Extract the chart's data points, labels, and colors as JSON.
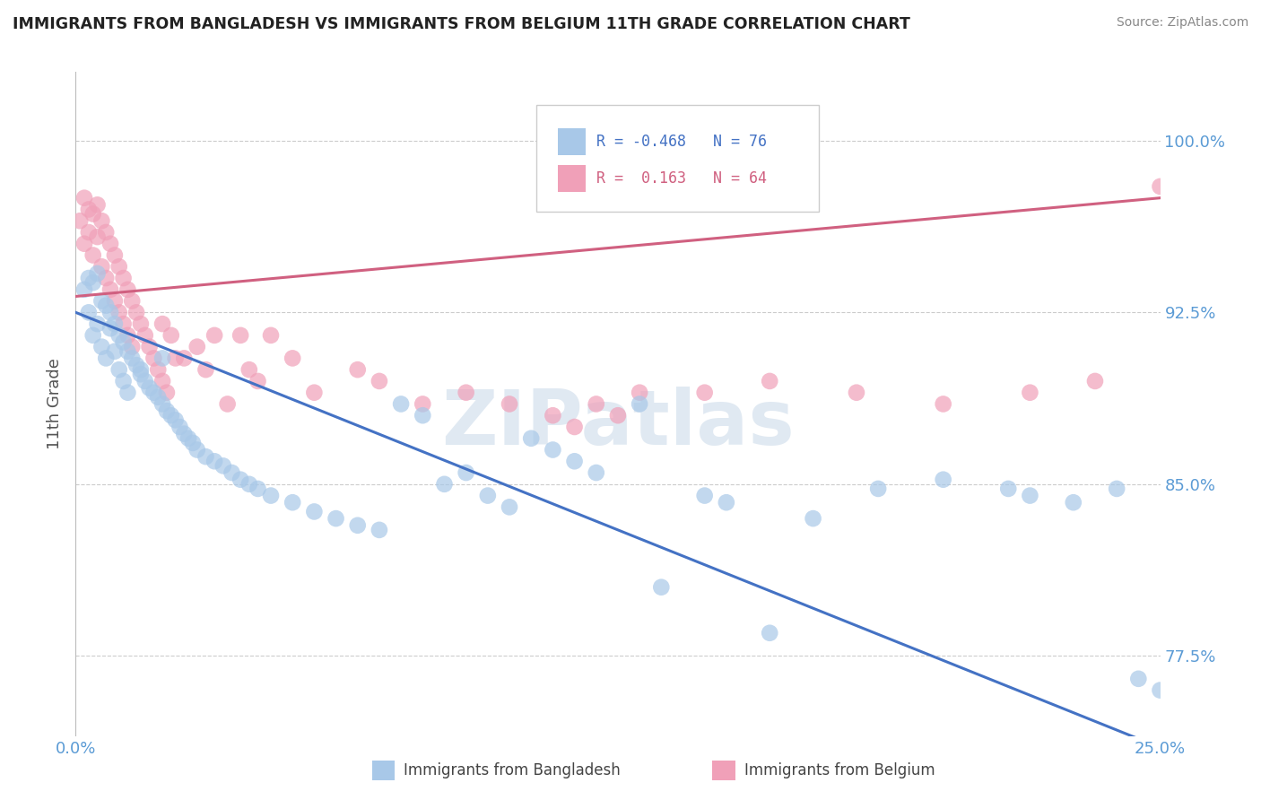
{
  "title": "IMMIGRANTS FROM BANGLADESH VS IMMIGRANTS FROM BELGIUM 11TH GRADE CORRELATION CHART",
  "source": "Source: ZipAtlas.com",
  "ylabel": "11th Grade",
  "xlim": [
    0.0,
    25.0
  ],
  "ylim": [
    74.0,
    103.0
  ],
  "yticks": [
    77.5,
    85.0,
    92.5,
    100.0
  ],
  "ytick_labels": [
    "77.5%",
    "85.0%",
    "92.5%",
    "100.0%"
  ],
  "legend_r_bangladesh": "-0.468",
  "legend_n_bangladesh": "76",
  "legend_r_belgium": " 0.163",
  "legend_n_belgium": "64",
  "color_bangladesh": "#a8c8e8",
  "color_belgium": "#f0a0b8",
  "color_line_bangladesh": "#4472c4",
  "color_line_belgium": "#d06080",
  "watermark": "ZIPatlas",
  "watermark_color": "#c8d8e8",
  "background_color": "#ffffff",
  "grid_color": "#cccccc",
  "title_color": "#222222",
  "tick_label_color": "#5b9bd5",
  "ban_x": [
    0.2,
    0.3,
    0.3,
    0.4,
    0.4,
    0.5,
    0.5,
    0.6,
    0.6,
    0.7,
    0.7,
    0.8,
    0.8,
    0.9,
    0.9,
    1.0,
    1.0,
    1.1,
    1.1,
    1.2,
    1.2,
    1.3,
    1.4,
    1.5,
    1.5,
    1.6,
    1.7,
    1.8,
    1.9,
    2.0,
    2.0,
    2.1,
    2.2,
    2.3,
    2.4,
    2.5,
    2.6,
    2.7,
    2.8,
    3.0,
    3.2,
    3.4,
    3.6,
    3.8,
    4.0,
    4.2,
    4.5,
    5.0,
    5.5,
    6.0,
    6.5,
    7.0,
    7.5,
    8.0,
    8.5,
    9.0,
    9.5,
    10.0,
    10.5,
    11.0,
    11.5,
    12.0,
    13.0,
    14.5,
    15.0,
    17.0,
    18.5,
    20.0,
    21.5,
    22.0,
    23.0,
    24.0,
    24.5,
    25.0,
    13.5,
    16.0
  ],
  "ban_y": [
    93.5,
    94.0,
    92.5,
    93.8,
    91.5,
    94.2,
    92.0,
    93.0,
    91.0,
    92.8,
    90.5,
    92.5,
    91.8,
    92.0,
    90.8,
    91.5,
    90.0,
    91.2,
    89.5,
    90.8,
    89.0,
    90.5,
    90.2,
    90.0,
    89.8,
    89.5,
    89.2,
    89.0,
    88.8,
    88.5,
    90.5,
    88.2,
    88.0,
    87.8,
    87.5,
    87.2,
    87.0,
    86.8,
    86.5,
    86.2,
    86.0,
    85.8,
    85.5,
    85.2,
    85.0,
    84.8,
    84.5,
    84.2,
    83.8,
    83.5,
    83.2,
    83.0,
    88.5,
    88.0,
    85.0,
    85.5,
    84.5,
    84.0,
    87.0,
    86.5,
    86.0,
    85.5,
    88.5,
    84.5,
    84.2,
    83.5,
    84.8,
    85.2,
    84.8,
    84.5,
    84.2,
    84.8,
    76.5,
    76.0,
    80.5,
    78.5
  ],
  "bel_x": [
    0.1,
    0.2,
    0.2,
    0.3,
    0.3,
    0.4,
    0.4,
    0.5,
    0.5,
    0.6,
    0.6,
    0.7,
    0.7,
    0.8,
    0.8,
    0.9,
    0.9,
    1.0,
    1.0,
    1.1,
    1.1,
    1.2,
    1.2,
    1.3,
    1.3,
    1.4,
    1.5,
    1.6,
    1.7,
    1.8,
    1.9,
    2.0,
    2.0,
    2.1,
    2.2,
    2.5,
    2.8,
    3.0,
    3.2,
    3.5,
    4.0,
    4.5,
    5.0,
    5.5,
    6.5,
    7.0,
    8.0,
    9.0,
    10.0,
    11.0,
    12.0,
    13.0,
    14.5,
    16.0,
    18.0,
    20.0,
    22.0,
    23.5,
    25.0,
    11.5,
    12.5,
    3.8,
    4.2,
    2.3
  ],
  "bel_y": [
    96.5,
    97.5,
    95.5,
    97.0,
    96.0,
    96.8,
    95.0,
    97.2,
    95.8,
    96.5,
    94.5,
    96.0,
    94.0,
    95.5,
    93.5,
    95.0,
    93.0,
    94.5,
    92.5,
    94.0,
    92.0,
    93.5,
    91.5,
    93.0,
    91.0,
    92.5,
    92.0,
    91.5,
    91.0,
    90.5,
    90.0,
    89.5,
    92.0,
    89.0,
    91.5,
    90.5,
    91.0,
    90.0,
    91.5,
    88.5,
    90.0,
    91.5,
    90.5,
    89.0,
    90.0,
    89.5,
    88.5,
    89.0,
    88.5,
    88.0,
    88.5,
    89.0,
    89.0,
    89.5,
    89.0,
    88.5,
    89.0,
    89.5,
    98.0,
    87.5,
    88.0,
    91.5,
    89.5,
    90.5
  ]
}
